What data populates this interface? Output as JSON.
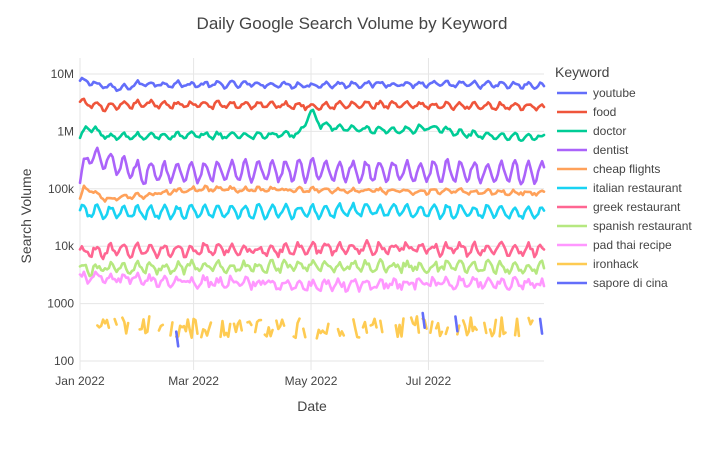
{
  "chart_data": {
    "type": "line",
    "title": "Daily Google Search Volume by Keyword",
    "xlabel": "Date",
    "ylabel": "Search Volume",
    "y_scale": "log",
    "ylim": [
      100,
      10000000
    ],
    "xlim": [
      "2022-01-01",
      "2022-08-30"
    ],
    "x_ticks": [
      {
        "date": "2022-01-01",
        "label": "Jan 2022"
      },
      {
        "date": "2022-03-01",
        "label": "Mar 2022"
      },
      {
        "date": "2022-05-01",
        "label": "May 2022"
      },
      {
        "date": "2022-07-01",
        "label": "Jul 2022"
      }
    ],
    "y_ticks": [
      {
        "value": 100,
        "label": "100"
      },
      {
        "value": 1000,
        "label": "1000"
      },
      {
        "value": 10000,
        "label": "10k"
      },
      {
        "value": 100000,
        "label": "100k"
      },
      {
        "value": 1000000,
        "label": "1M"
      },
      {
        "value": 10000000,
        "label": "10M"
      }
    ],
    "grid": true,
    "legend_title": "Keyword",
    "legend_position": "right",
    "series": [
      {
        "name": "youtube",
        "color": "#636efa",
        "values": [
          [
            "2022-01-01",
            7500000
          ],
          [
            "2022-01-08",
            7000000
          ],
          [
            "2022-01-15",
            6000000
          ],
          [
            "2022-01-22",
            5500000
          ],
          [
            "2022-02-01",
            6800000
          ],
          [
            "2022-03-01",
            6500000
          ],
          [
            "2022-04-01",
            6600000
          ],
          [
            "2022-05-01",
            6400000
          ],
          [
            "2022-06-01",
            6700000
          ],
          [
            "2022-07-01",
            6600000
          ],
          [
            "2022-08-01",
            6500000
          ],
          [
            "2022-08-30",
            6200000
          ]
        ]
      },
      {
        "name": "food",
        "color": "#ef553b",
        "values": [
          [
            "2022-01-01",
            3200000
          ],
          [
            "2022-01-15",
            2600000
          ],
          [
            "2022-02-01",
            3000000
          ],
          [
            "2022-03-01",
            2900000
          ],
          [
            "2022-04-01",
            2900000
          ],
          [
            "2022-05-01",
            2800000
          ],
          [
            "2022-06-01",
            2900000
          ],
          [
            "2022-07-01",
            2800000
          ],
          [
            "2022-08-01",
            2800000
          ],
          [
            "2022-08-30",
            2700000
          ]
        ]
      },
      {
        "name": "doctor",
        "color": "#00cc96",
        "values": [
          [
            "2022-01-01",
            750000
          ],
          [
            "2022-01-05",
            1250000
          ],
          [
            "2022-01-15",
            800000
          ],
          [
            "2022-02-01",
            820000
          ],
          [
            "2022-03-01",
            850000
          ],
          [
            "2022-04-01",
            850000
          ],
          [
            "2022-04-25",
            900000
          ],
          [
            "2022-05-01",
            2200000
          ],
          [
            "2022-05-06",
            1300000
          ],
          [
            "2022-05-20",
            1100000
          ],
          [
            "2022-06-15",
            1000000
          ],
          [
            "2022-07-01",
            1200000
          ],
          [
            "2022-07-15",
            950000
          ],
          [
            "2022-08-01",
            850000
          ],
          [
            "2022-08-30",
            780000
          ]
        ]
      },
      {
        "name": "dentist",
        "color": "#ab63fa",
        "values": [
          [
            "2022-01-01",
            120000
          ],
          [
            "2022-01-05",
            380000
          ],
          [
            "2022-02-01",
            190000
          ],
          [
            "2022-03-01",
            200000
          ],
          [
            "2022-04-01",
            200000
          ],
          [
            "2022-05-01",
            210000
          ],
          [
            "2022-06-01",
            200000
          ],
          [
            "2022-07-01",
            200000
          ],
          [
            "2022-08-01",
            200000
          ],
          [
            "2022-08-30",
            190000
          ]
        ]
      },
      {
        "name": "cheap flights",
        "color": "#ffa15a",
        "values": [
          [
            "2022-01-01",
            65000
          ],
          [
            "2022-01-03",
            110000
          ],
          [
            "2022-01-15",
            65000
          ],
          [
            "2022-02-01",
            75000
          ],
          [
            "2022-03-01",
            100000
          ],
          [
            "2022-04-01",
            98000
          ],
          [
            "2022-05-01",
            95000
          ],
          [
            "2022-06-01",
            92000
          ],
          [
            "2022-07-01",
            90000
          ],
          [
            "2022-08-01",
            88000
          ],
          [
            "2022-08-30",
            85000
          ]
        ]
      },
      {
        "name": "italian restaurant",
        "color": "#19d3f3",
        "values": [
          [
            "2022-01-01",
            40000
          ],
          [
            "2022-02-01",
            38000
          ],
          [
            "2022-03-01",
            40000
          ],
          [
            "2022-04-01",
            40000
          ],
          [
            "2022-05-01",
            40000
          ],
          [
            "2022-06-01",
            42000
          ],
          [
            "2022-07-01",
            40000
          ],
          [
            "2022-08-01",
            40000
          ],
          [
            "2022-08-30",
            38000
          ]
        ]
      },
      {
        "name": "greek restaurant",
        "color": "#ff6692",
        "values": [
          [
            "2022-01-01",
            8000
          ],
          [
            "2022-02-01",
            8500
          ],
          [
            "2022-03-01",
            8500
          ],
          [
            "2022-04-01",
            8500
          ],
          [
            "2022-05-01",
            9000
          ],
          [
            "2022-06-01",
            9500
          ],
          [
            "2022-07-01",
            9000
          ],
          [
            "2022-08-01",
            9000
          ],
          [
            "2022-08-30",
            8500
          ]
        ]
      },
      {
        "name": "spanish restaurant",
        "color": "#b6e880",
        "values": [
          [
            "2022-01-01",
            4000
          ],
          [
            "2022-02-01",
            4200
          ],
          [
            "2022-03-01",
            4300
          ],
          [
            "2022-04-01",
            4400
          ],
          [
            "2022-05-01",
            4500
          ],
          [
            "2022-06-01",
            4500
          ],
          [
            "2022-07-01",
            4400
          ],
          [
            "2022-08-01",
            4300
          ],
          [
            "2022-08-30",
            4200
          ]
        ]
      },
      {
        "name": "pad thai recipe",
        "color": "#ff97ff",
        "values": [
          [
            "2022-01-01",
            2800
          ],
          [
            "2022-02-01",
            2600
          ],
          [
            "2022-03-01",
            2400
          ],
          [
            "2022-04-01",
            2300
          ],
          [
            "2022-05-01",
            2100
          ],
          [
            "2022-06-01",
            2200
          ],
          [
            "2022-07-01",
            2300
          ],
          [
            "2022-08-01",
            2300
          ],
          [
            "2022-08-30",
            2200
          ]
        ]
      },
      {
        "name": "ironhack",
        "color": "#fecb52",
        "values": [
          [
            "2022-01-01",
            350
          ],
          [
            "2022-02-01",
            400
          ],
          [
            "2022-03-01",
            380
          ],
          [
            "2022-04-01",
            380
          ],
          [
            "2022-05-01",
            370
          ],
          [
            "2022-06-01",
            380
          ],
          [
            "2022-07-01",
            400
          ],
          [
            "2022-08-01",
            400
          ],
          [
            "2022-08-30",
            380
          ]
        ]
      },
      {
        "name": "sapore di cina",
        "color": "#636efa",
        "values": [
          [
            "2022-02-20",
            180
          ],
          [
            "2022-06-28",
            380
          ],
          [
            "2022-07-15",
            330
          ],
          [
            "2022-08-28",
            300
          ]
        ]
      }
    ]
  }
}
